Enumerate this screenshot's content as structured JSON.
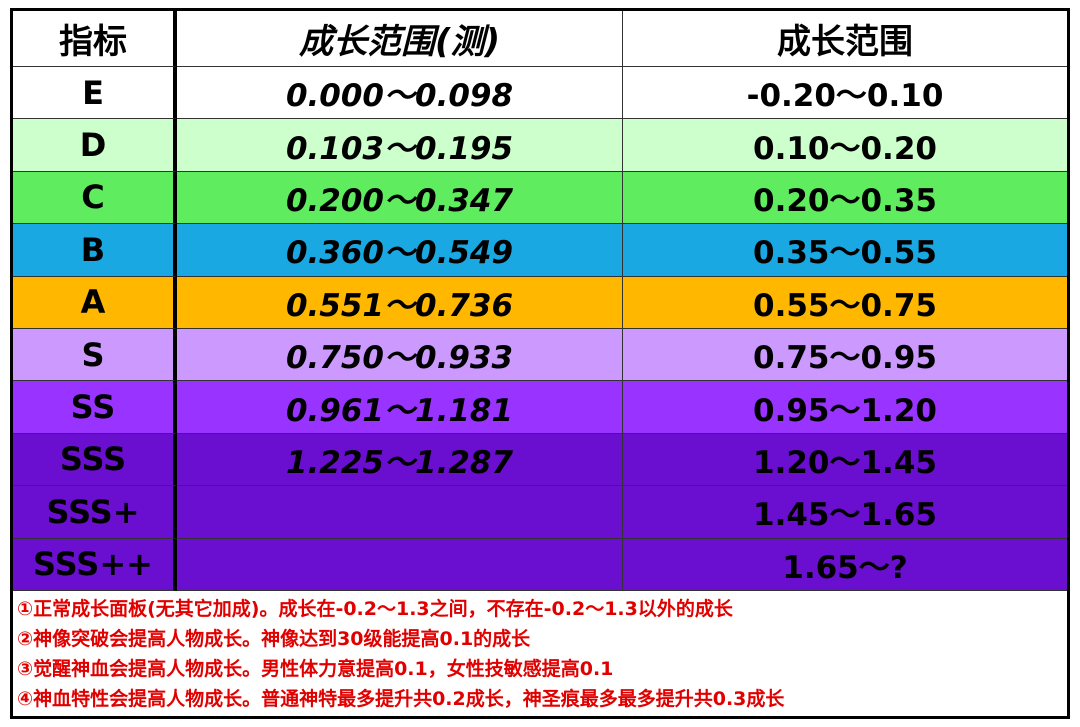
{
  "table": {
    "headers": [
      "指标",
      "成长范围(测)",
      "成长范围"
    ],
    "rows": [
      {
        "grade": "E",
        "measured": "0.000～0.098",
        "range": "-0.20～0.10",
        "color": "#ffffff"
      },
      {
        "grade": "D",
        "measured": "0.103～0.195",
        "range": "0.10～0.20",
        "color": "#ccffcc"
      },
      {
        "grade": "C",
        "measured": "0.200～0.347",
        "range": "0.20～0.35",
        "color": "#5fec5f"
      },
      {
        "grade": "B",
        "measured": "0.360～0.549",
        "range": "0.35～0.55",
        "color": "#19a8e2"
      },
      {
        "grade": "A",
        "measured": "0.551～0.736",
        "range": "0.55～0.75",
        "color": "#ffb700"
      },
      {
        "grade": "S",
        "measured": "0.750～0.933",
        "range": "0.75～0.95",
        "color": "#cc99ff"
      },
      {
        "grade": "SS",
        "measured": "0.961～1.181",
        "range": "0.95～1.20",
        "color": "#9933ff"
      },
      {
        "grade": "SSS",
        "measured": "1.225～1.287",
        "range": "1.20～1.45",
        "color": "#6a0fd0"
      },
      {
        "grade": "SSS+",
        "range": "1.45～1.65",
        "color": "#6a0fd0"
      },
      {
        "grade": "SSS++",
        "range": "1.65～?",
        "color": "#6a0fd0"
      }
    ]
  },
  "notes": [
    "①正常成长面板(无其它加成)。成长在-0.2～1.3之间，不存在-0.2～1.3以外的成长",
    "②神像突破会提高人物成长。神像达到30级能提高0.1的成长",
    "③觉醒神血会提高人物成长。男性体力意提高0.1，女性技敏感提高0.1",
    "④神血特性会提高人物成长。普通神特最多提升共0.2成长，神圣痕最多最多提升共0.3成长"
  ]
}
